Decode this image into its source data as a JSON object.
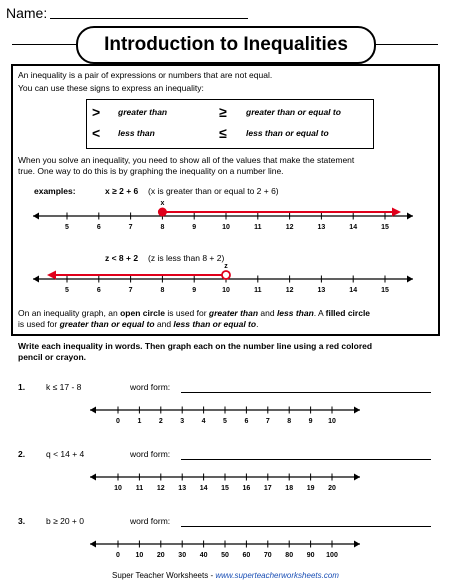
{
  "header": {
    "name_label": "Name:",
    "title": "Introduction to Inequalities"
  },
  "intro": {
    "line1": "An inequality is a pair of expressions or numbers that are not equal.",
    "line2": "You can use these signs to express an inequality:",
    "signs": [
      {
        "symbol": ">",
        "meaning": "greater than"
      },
      {
        "symbol": "<",
        "meaning": "less than"
      },
      {
        "symbol": "≥",
        "meaning": "greater than or equal to"
      },
      {
        "symbol": "≤",
        "meaning": "less than or equal to"
      }
    ],
    "solve_line1": "When you solve an inequality, you need to show all of the values that make the statement",
    "solve_line2": "true.  One way to do this is by graphing the inequality on a number line."
  },
  "examples": {
    "label": "examples:",
    "ex1": {
      "expr": "x ≥ 2 + 6",
      "desc": "(x is greater than or equal to 2 + 6)",
      "var": "x",
      "point": 8,
      "closed": true,
      "direction": "right"
    },
    "ex2": {
      "expr": "z < 8 + 2",
      "desc": "(z is less than 8 + 2)",
      "var": "z",
      "point": 10,
      "closed": false,
      "direction": "left"
    },
    "ticks": [
      5,
      6,
      7,
      8,
      9,
      10,
      11,
      12,
      13,
      14,
      15
    ],
    "arrow_color": "#e0001b"
  },
  "circle_note": {
    "p1": "On an inequality graph, an ",
    "open": "open circle",
    "p2": " is used for ",
    "gt": "greater than",
    "p3": " and ",
    "lt": "less than",
    "p4": ". A ",
    "filled": "filled circle",
    "p5": "is used for ",
    "ge": "greater than or equal to",
    "p6": " and ",
    "le": "less than or equal to",
    "p7": "."
  },
  "instructions": {
    "line1": "Write each inequality in words.  Then graph each on the number line using a red colored",
    "line2": "pencil or crayon."
  },
  "problems": [
    {
      "num": "1.",
      "expr": "k ≤ 17 - 8",
      "word_label": "word form:",
      "ticks": [
        0,
        1,
        2,
        3,
        4,
        5,
        6,
        7,
        8,
        9,
        10
      ]
    },
    {
      "num": "2.",
      "expr": "q < 14 + 4",
      "word_label": "word form:",
      "ticks": [
        10,
        11,
        12,
        13,
        14,
        15,
        16,
        17,
        18,
        19,
        20
      ]
    },
    {
      "num": "3.",
      "expr": "b ≥ 20 + 0",
      "word_label": "word form:",
      "ticks": [
        0,
        10,
        20,
        30,
        40,
        50,
        60,
        70,
        80,
        90,
        100
      ]
    }
  ],
  "footer": {
    "brand": "Super Teacher Worksheets - ",
    "url": "www.superteacherworksheets.com"
  }
}
